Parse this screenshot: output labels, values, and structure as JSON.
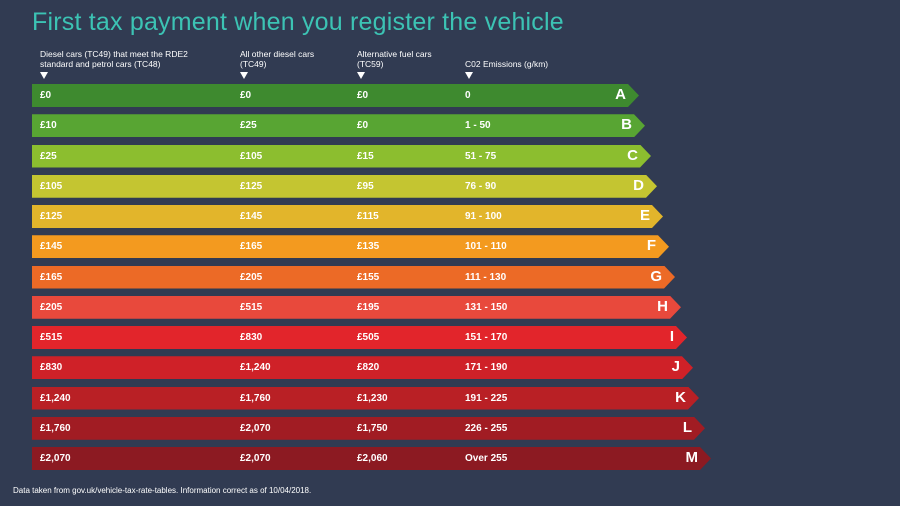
{
  "title": "First tax payment when you register the vehicle",
  "headers": [
    "Diesel cars (TC49) that meet the RDE2 standard and petrol cars (TC48)",
    "All other diesel cars (TC49)",
    "Alternative fuel cars (TC59)",
    "C02 Emissions (g/km)"
  ],
  "footnote": "Data taken from gov.uk/vehicle-tax-rate-tables. Information correct as of 10/04/2018.",
  "chart_data": {
    "type": "table",
    "columns": [
      "Diesel cars (TC49) that meet the RDE2 standard and petrol cars (TC48)",
      "All other diesel cars (TC49)",
      "Alternative fuel cars (TC59)",
      "C02 Emissions (g/km)"
    ],
    "rows": [
      {
        "band": "A",
        "rde2_petrol": "£0",
        "other_diesel": "£0",
        "alt_fuel": "£0",
        "co2": "0",
        "color": "#3e8a2f"
      },
      {
        "band": "B",
        "rde2_petrol": "£10",
        "other_diesel": "£25",
        "alt_fuel": "£0",
        "co2": "1 - 50",
        "color": "#58a533"
      },
      {
        "band": "C",
        "rde2_petrol": "£25",
        "other_diesel": "£105",
        "alt_fuel": "£15",
        "co2": "51 - 75",
        "color": "#8cbe2f"
      },
      {
        "band": "D",
        "rde2_petrol": "£105",
        "other_diesel": "£125",
        "alt_fuel": "£95",
        "co2": "76 - 90",
        "color": "#c4c531"
      },
      {
        "band": "E",
        "rde2_petrol": "£125",
        "other_diesel": "£145",
        "alt_fuel": "£115",
        "co2": "91 - 100",
        "color": "#e2b52b"
      },
      {
        "band": "F",
        "rde2_petrol": "£145",
        "other_diesel": "£165",
        "alt_fuel": "£135",
        "co2": "101 - 110",
        "color": "#f39a1f"
      },
      {
        "band": "G",
        "rde2_petrol": "£165",
        "other_diesel": "£205",
        "alt_fuel": "£155",
        "co2": "111 - 130",
        "color": "#ec6a26"
      },
      {
        "band": "H",
        "rde2_petrol": "£205",
        "other_diesel": "£515",
        "alt_fuel": "£195",
        "co2": "131 - 150",
        "color": "#e8493c"
      },
      {
        "band": "I",
        "rde2_petrol": "£515",
        "other_diesel": "£830",
        "alt_fuel": "£505",
        "co2": "151 - 170",
        "color": "#e2252b"
      },
      {
        "band": "J",
        "rde2_petrol": "£830",
        "other_diesel": "£1,240",
        "alt_fuel": "£820",
        "co2": "171 - 190",
        "color": "#cf2128"
      },
      {
        "band": "K",
        "rde2_petrol": "£1,240",
        "other_diesel": "£1,760",
        "alt_fuel": "£1,230",
        "co2": "191 - 225",
        "color": "#b92025"
      },
      {
        "band": "L",
        "rde2_petrol": "£1,760",
        "other_diesel": "£2,070",
        "alt_fuel": "£1,750",
        "co2": "226 - 255",
        "color": "#a11c23"
      },
      {
        "band": "M",
        "rde2_petrol": "£2,070",
        "other_diesel": "£2,070",
        "alt_fuel": "£2,060",
        "co2": "Over 255",
        "color": "#8c1a22"
      }
    ]
  }
}
